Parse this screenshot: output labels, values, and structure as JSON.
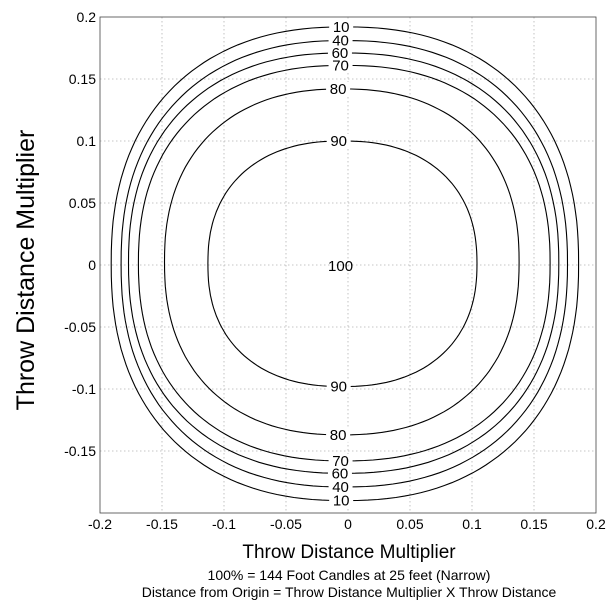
{
  "chart_data": {
    "type": "contour",
    "xlabel": "Throw Distance Multiplier",
    "ylabel": "Throw Distance Multiplier",
    "xlim": [
      -0.2,
      0.2
    ],
    "ylim": [
      -0.2,
      0.2
    ],
    "grid": true,
    "x_ticks": [
      "-0.2",
      "-0.15",
      "-0.1",
      "-0.05",
      "0",
      "0.05",
      "0.1",
      "0.15",
      "0.2"
    ],
    "y_ticks": [
      "0.2",
      "0.15",
      "0.1",
      "0.05",
      "0",
      "-0.05",
      "-0.1",
      "-0.15"
    ],
    "center_label": "100",
    "contours": [
      {
        "level": 90,
        "label": "90",
        "x_left": -0.113,
        "x_right": 0.104,
        "y_top": 0.1,
        "y_bottom": -0.098
      },
      {
        "level": 80,
        "label": "80",
        "x_left": -0.148,
        "x_right": 0.138,
        "y_top": 0.142,
        "y_bottom": -0.137
      },
      {
        "level": 70,
        "label": "70",
        "x_left": -0.169,
        "x_right": 0.163,
        "y_top": 0.161,
        "y_bottom": -0.158
      },
      {
        "level": 60,
        "label": "60",
        "x_left": -0.177,
        "x_right": 0.17,
        "y_top": 0.171,
        "y_bottom": -0.168
      },
      {
        "level": 40,
        "label": "40",
        "x_left": -0.183,
        "x_right": 0.177,
        "y_top": 0.181,
        "y_bottom": -0.179
      },
      {
        "level": 10,
        "label": "10",
        "x_left": -0.191,
        "x_right": 0.186,
        "y_top": 0.192,
        "y_bottom": -0.19
      }
    ],
    "notes": [
      "100% = 144 Foot Candles at 25 feet (Narrow)",
      "Distance from Origin = Throw Distance Multiplier X Throw Distance"
    ]
  }
}
